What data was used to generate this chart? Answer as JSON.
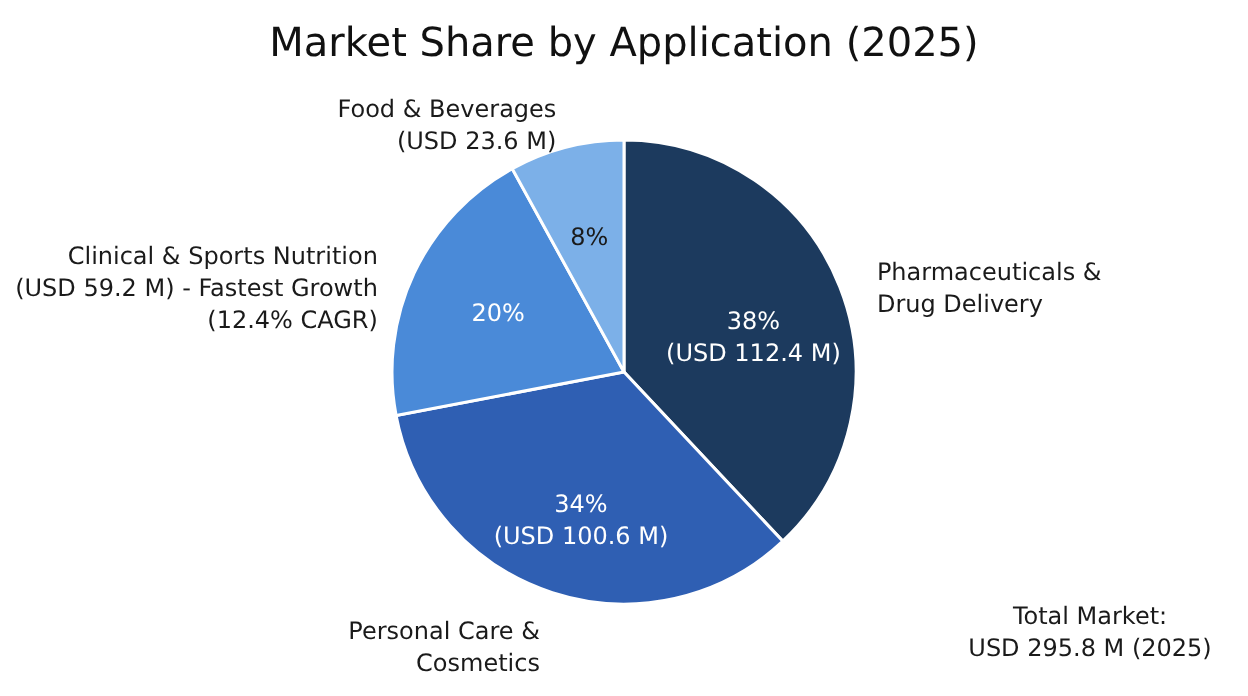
{
  "chart_data": {
    "type": "pie",
    "title": "Market Share by Application (2025)",
    "categories": [
      "Pharmaceuticals & Drug Delivery",
      "Personal Care & Cosmetics",
      "Clinical & Sports Nutrition",
      "Food & Beverages"
    ],
    "values": [
      38,
      34,
      20,
      8
    ],
    "colors": [
      "#1c3a5e",
      "#2f5fb3",
      "#4a8ad8",
      "#7cb0e8"
    ],
    "value_labels": [
      "38% (USD 112.4 M)",
      "34% (USD 100.6 M)",
      "20%",
      "8%"
    ],
    "annotations": [
      {
        "text": "(USD 23.6 M)",
        "x": "Food & Beverages"
      },
      {
        "text": "(USD 59.2 M) - Fastest Growth (12.4% CAGR)",
        "x": "Clinical & Sports Nutrition"
      },
      "Total Market: USD 295.8 M (2025)"
    ],
    "legend": false
  }
}
